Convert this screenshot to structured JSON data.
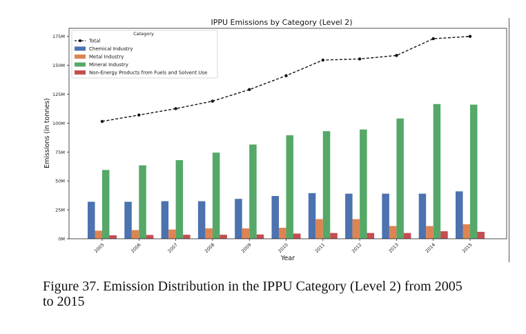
{
  "chart_data": {
    "type": "bar",
    "title": "IPPU Emissions by Category (Level 2)",
    "xlabel": "Year",
    "ylabel": "Emissions (in tonnes)",
    "categories": [
      "2005",
      "2006",
      "2007",
      "2008",
      "2009",
      "2010",
      "2011",
      "2012",
      "2013",
      "2014",
      "2015"
    ],
    "ylim": [
      0,
      182000000
    ],
    "yticks": [
      0,
      25000000,
      50000000,
      75000000,
      100000000,
      125000000,
      150000000,
      175000000
    ],
    "ytick_labels": [
      "0M",
      "25M",
      "50M",
      "75M",
      "100M",
      "125M",
      "150M",
      "175M"
    ],
    "grid": false,
    "legend": {
      "title": "Category",
      "position": "top-left"
    },
    "series": [
      {
        "name": "Chemical Industry",
        "kind": "bar",
        "color": "#4c72b0",
        "values": [
          32000000,
          32000000,
          32500000,
          32500000,
          34500000,
          37000000,
          39500000,
          39000000,
          39000000,
          39000000,
          41000000
        ]
      },
      {
        "name": "Metal Industry",
        "kind": "bar",
        "color": "#dd8452",
        "values": [
          7000000,
          7500000,
          8000000,
          9000000,
          9000000,
          9500000,
          17000000,
          17000000,
          11000000,
          11000000,
          12500000
        ]
      },
      {
        "name": "Mineral Industry",
        "kind": "bar",
        "color": "#55a868",
        "values": [
          59500000,
          63500000,
          68000000,
          74500000,
          81500000,
          89500000,
          93000000,
          94500000,
          104000000,
          116500000,
          116000000
        ]
      },
      {
        "name": "Non-Energy Products from Fuels and Solvent Use",
        "kind": "bar",
        "color": "#c44e52",
        "values": [
          3000000,
          3300000,
          3500000,
          3500000,
          3700000,
          4500000,
          5000000,
          5000000,
          5000000,
          6500000,
          6000000
        ]
      },
      {
        "name": "Total",
        "kind": "line",
        "color": "#111111",
        "values": [
          101500000,
          107000000,
          112500000,
          119000000,
          129000000,
          141000000,
          154500000,
          155500000,
          158500000,
          173000000,
          175000000
        ]
      }
    ]
  },
  "caption": {
    "line1": "Figure 37.  Emission Distribution in the IPPU Category (Level 2) from 2005",
    "line2": "to 2015"
  }
}
